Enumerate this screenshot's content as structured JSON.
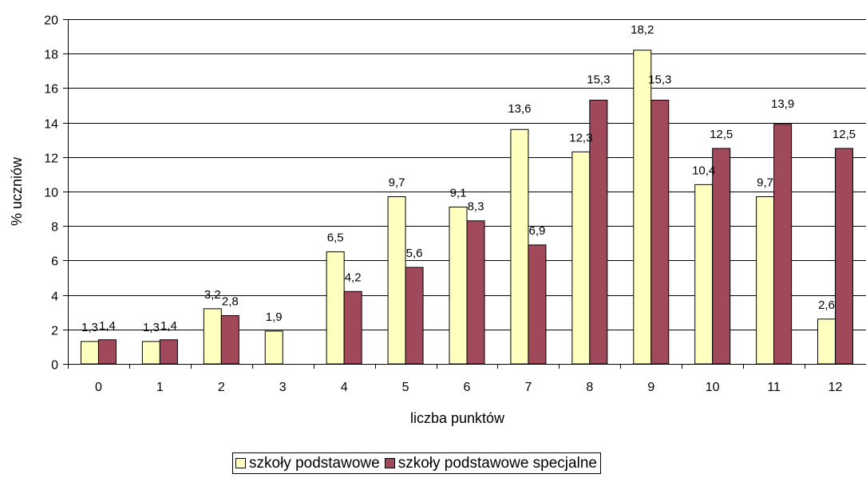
{
  "chart_data": {
    "type": "bar",
    "title": "",
    "xlabel": "liczba punktów",
    "ylabel": "% uczniów",
    "ylim": [
      0,
      20
    ],
    "yticks": [
      0,
      2,
      4,
      6,
      8,
      10,
      12,
      14,
      16,
      18,
      20
    ],
    "grid": true,
    "legend_position": "bottom",
    "categories": [
      "0",
      "1",
      "2",
      "3",
      "4",
      "5",
      "6",
      "7",
      "8",
      "9",
      "10",
      "11",
      "12"
    ],
    "series": [
      {
        "name": "szkoły podstawowe",
        "color": "#FFFFC0",
        "values": [
          1.3,
          1.3,
          3.2,
          1.9,
          6.5,
          9.7,
          9.1,
          13.6,
          12.3,
          18.2,
          10.4,
          9.7,
          2.6
        ],
        "labels": [
          "1,3",
          "1,3",
          "3,2",
          "1,9",
          "6,5",
          "9,7",
          "9,1",
          "13,6",
          "12,3",
          "18,2",
          "10,4",
          "9,7",
          "2,6"
        ]
      },
      {
        "name": "szkoły podstawowe specjalne",
        "color": "#A0495A",
        "values": [
          1.4,
          1.4,
          2.8,
          null,
          4.2,
          5.6,
          8.3,
          6.9,
          15.3,
          15.3,
          12.5,
          13.9,
          12.5
        ],
        "labels": [
          "1,4",
          "1,4",
          "2,8",
          "",
          "4,2",
          "5,6",
          "8,3",
          "6,9",
          "15,3",
          "15,3",
          "12,5",
          "13,9",
          "12,5"
        ]
      }
    ]
  }
}
